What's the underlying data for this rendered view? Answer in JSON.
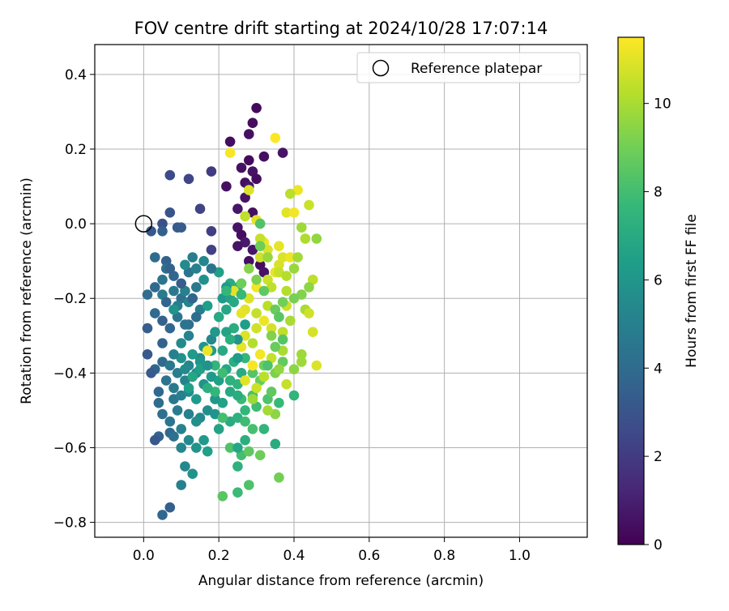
{
  "chart_data": {
    "type": "scatter",
    "title": "FOV centre drift starting at 2024/10/28 17:07:14",
    "xlabel": "Angular distance from reference (arcmin)",
    "ylabel": "Rotation from reference (arcmin)",
    "xlim": [
      -0.13,
      1.18
    ],
    "ylim": [
      -0.84,
      0.48
    ],
    "xticks": [
      0.0,
      0.2,
      0.4,
      0.6,
      0.8,
      1.0
    ],
    "xtick_labels": [
      "0.0",
      "0.2",
      "0.4",
      "0.6",
      "0.8",
      "1.0"
    ],
    "yticks": [
      0.4,
      0.2,
      0.0,
      -0.2,
      -0.4,
      -0.6,
      -0.8
    ],
    "ytick_labels": [
      "0.4",
      "0.2",
      "0.0",
      "−0.2",
      "−0.4",
      "−0.6",
      "−0.8"
    ],
    "grid": true,
    "legend": {
      "placement": "top-right",
      "entries": [
        "Reference platepar"
      ]
    },
    "reference_point": {
      "x": 0.0,
      "y": 0.0
    },
    "colorbar": {
      "label": "Hours from first FF file",
      "range": [
        0,
        11.5
      ],
      "ticks": [
        0,
        2,
        4,
        6,
        8,
        10
      ],
      "tick_labels": [
        "0",
        "2",
        "4",
        "6",
        "8",
        "10"
      ],
      "colormap": "viridis"
    },
    "colormap_stops": [
      "#440154",
      "#482878",
      "#3e4a89",
      "#31688e",
      "#26828e",
      "#1f9e89",
      "#35b779",
      "#6ece58",
      "#b5de2b",
      "#fde725"
    ],
    "point_color_scale": [
      0,
      11.5
    ],
    "points": [
      [
        0.3,
        0.31,
        0.3
      ],
      [
        0.29,
        0.27,
        0.4
      ],
      [
        0.23,
        0.22,
        0.4
      ],
      [
        0.28,
        0.24,
        0.5
      ],
      [
        0.37,
        0.19,
        0.6
      ],
      [
        0.32,
        0.18,
        0.5
      ],
      [
        0.28,
        0.17,
        0.3
      ],
      [
        0.26,
        0.15,
        0.5
      ],
      [
        0.29,
        0.14,
        0.6
      ],
      [
        0.3,
        0.12,
        0.4
      ],
      [
        0.27,
        0.11,
        0.5
      ],
      [
        0.28,
        0.1,
        0.7
      ],
      [
        0.22,
        0.1,
        0.5
      ],
      [
        0.27,
        0.07,
        0.6
      ],
      [
        0.25,
        0.04,
        0.7
      ],
      [
        0.29,
        0.03,
        0.5
      ],
      [
        0.25,
        -0.01,
        0.6
      ],
      [
        0.26,
        -0.03,
        0.4
      ],
      [
        0.27,
        -0.05,
        0.8
      ],
      [
        0.25,
        -0.06,
        0.6
      ],
      [
        0.29,
        -0.07,
        0.7
      ],
      [
        0.28,
        -0.1,
        0.5
      ],
      [
        0.31,
        -0.11,
        0.4
      ],
      [
        0.32,
        -0.13,
        0.6
      ],
      [
        0.18,
        0.14,
        2.0
      ],
      [
        0.12,
        0.12,
        2.4
      ],
      [
        0.07,
        0.13,
        2.6
      ],
      [
        0.15,
        0.04,
        2.3
      ],
      [
        0.07,
        0.03,
        3.0
      ],
      [
        0.05,
        0.0,
        2.8
      ],
      [
        0.09,
        -0.01,
        3.2
      ],
      [
        0.05,
        -0.02,
        3.5
      ],
      [
        0.02,
        -0.02,
        3.1
      ],
      [
        0.1,
        -0.01,
        3.3
      ],
      [
        0.18,
        -0.07,
        2.2
      ],
      [
        0.18,
        -0.02,
        2.1
      ],
      [
        0.03,
        -0.09,
        4.0
      ],
      [
        0.06,
        -0.1,
        3.6
      ],
      [
        0.06,
        -0.12,
        4.2
      ],
      [
        0.12,
        -0.13,
        4.5
      ],
      [
        0.08,
        -0.14,
        3.8
      ],
      [
        0.05,
        -0.15,
        4.4
      ],
      [
        0.03,
        -0.17,
        3.9
      ],
      [
        0.01,
        -0.19,
        4.1
      ],
      [
        0.05,
        -0.19,
        4.8
      ],
      [
        0.08,
        -0.18,
        4.6
      ],
      [
        0.1,
        -0.2,
        4.3
      ],
      [
        0.11,
        -0.18,
        5.0
      ],
      [
        0.14,
        -0.17,
        4.7
      ],
      [
        0.12,
        -0.21,
        5.2
      ],
      [
        0.09,
        -0.22,
        4.9
      ],
      [
        0.06,
        -0.21,
        3.7
      ],
      [
        0.03,
        -0.24,
        4.0
      ],
      [
        0.05,
        -0.26,
        3.5
      ],
      [
        0.07,
        -0.28,
        3.8
      ],
      [
        0.01,
        -0.28,
        3.4
      ],
      [
        0.09,
        -0.25,
        4.5
      ],
      [
        0.12,
        -0.27,
        4.2
      ],
      [
        0.15,
        -0.23,
        4.8
      ],
      [
        0.12,
        -0.3,
        5.1
      ],
      [
        0.1,
        -0.32,
        5.5
      ],
      [
        0.05,
        -0.32,
        3.6
      ],
      [
        0.01,
        -0.35,
        3.2
      ],
      [
        0.05,
        -0.37,
        4.0
      ],
      [
        0.03,
        -0.39,
        3.7
      ],
      [
        0.02,
        -0.4,
        3.3
      ],
      [
        0.06,
        -0.42,
        4.4
      ],
      [
        0.09,
        -0.4,
        4.9
      ],
      [
        0.12,
        -0.38,
        5.3
      ],
      [
        0.15,
        -0.36,
        5.7
      ],
      [
        0.16,
        -0.33,
        6.0
      ],
      [
        0.18,
        -0.31,
        5.4
      ],
      [
        0.19,
        -0.29,
        6.1
      ],
      [
        0.17,
        -0.22,
        6.4
      ],
      [
        0.21,
        -0.2,
        6.2
      ],
      [
        0.23,
        -0.2,
        6.6
      ],
      [
        0.16,
        -0.15,
        5.8
      ],
      [
        0.2,
        -0.13,
        6.5
      ],
      [
        0.23,
        -0.16,
        7.0
      ],
      [
        0.25,
        -0.17,
        7.3
      ],
      [
        0.22,
        -0.23,
        6.8
      ],
      [
        0.24,
        -0.28,
        7.1
      ],
      [
        0.22,
        -0.29,
        6.7
      ],
      [
        0.21,
        -0.34,
        6.9
      ],
      [
        0.18,
        -0.34,
        6.3
      ],
      [
        0.15,
        -0.37,
        6.0
      ],
      [
        0.14,
        -0.4,
        5.6
      ],
      [
        0.11,
        -0.42,
        5.2
      ],
      [
        0.08,
        -0.44,
        4.7
      ],
      [
        0.04,
        -0.45,
        3.9
      ],
      [
        0.04,
        -0.48,
        4.1
      ],
      [
        0.08,
        -0.47,
        4.6
      ],
      [
        0.1,
        -0.46,
        5.0
      ],
      [
        0.12,
        -0.45,
        5.4
      ],
      [
        0.16,
        -0.43,
        5.9
      ],
      [
        0.18,
        -0.41,
        6.2
      ],
      [
        0.2,
        -0.42,
        6.5
      ],
      [
        0.22,
        -0.39,
        6.8
      ],
      [
        0.24,
        -0.37,
        7.2
      ],
      [
        0.27,
        -0.36,
        7.6
      ],
      [
        0.26,
        -0.4,
        7.0
      ],
      [
        0.25,
        -0.43,
        7.4
      ],
      [
        0.23,
        -0.45,
        6.9
      ],
      [
        0.21,
        -0.48,
        6.6
      ],
      [
        0.19,
        -0.47,
        6.1
      ],
      [
        0.17,
        -0.5,
        5.7
      ],
      [
        0.15,
        -0.52,
        5.4
      ],
      [
        0.12,
        -0.51,
        5.0
      ],
      [
        0.09,
        -0.5,
        4.8
      ],
      [
        0.05,
        -0.51,
        4.2
      ],
      [
        0.07,
        -0.53,
        4.5
      ],
      [
        0.07,
        -0.56,
        4.0
      ],
      [
        0.04,
        -0.57,
        3.6
      ],
      [
        0.03,
        -0.58,
        3.1
      ],
      [
        0.1,
        -0.55,
        5.1
      ],
      [
        0.12,
        -0.58,
        5.5
      ],
      [
        0.1,
        -0.6,
        5.3
      ],
      [
        0.14,
        -0.6,
        5.9
      ],
      [
        0.16,
        -0.58,
        6.2
      ],
      [
        0.2,
        -0.55,
        6.6
      ],
      [
        0.23,
        -0.53,
        7.0
      ],
      [
        0.25,
        -0.52,
        7.3
      ],
      [
        0.27,
        -0.5,
        7.6
      ],
      [
        0.26,
        -0.47,
        7.8
      ],
      [
        0.29,
        -0.46,
        8.1
      ],
      [
        0.3,
        -0.49,
        7.9
      ],
      [
        0.33,
        -0.47,
        8.3
      ],
      [
        0.36,
        -0.48,
        7.7
      ],
      [
        0.34,
        -0.45,
        8.6
      ],
      [
        0.31,
        -0.42,
        8.8
      ],
      [
        0.29,
        -0.4,
        8.4
      ],
      [
        0.32,
        -0.38,
        9.0
      ],
      [
        0.35,
        -0.4,
        9.2
      ],
      [
        0.37,
        -0.37,
        8.7
      ],
      [
        0.4,
        -0.39,
        9.5
      ],
      [
        0.42,
        -0.35,
        9.8
      ],
      [
        0.4,
        -0.46,
        7.5
      ],
      [
        0.38,
        -0.43,
        10.5
      ],
      [
        0.26,
        -0.62,
        8.0
      ],
      [
        0.23,
        -0.6,
        8.3
      ],
      [
        0.28,
        -0.61,
        8.6
      ],
      [
        0.31,
        -0.62,
        8.9
      ],
      [
        0.27,
        -0.58,
        7.2
      ],
      [
        0.25,
        -0.6,
        6.8
      ],
      [
        0.32,
        -0.55,
        7.5
      ],
      [
        0.35,
        -0.59,
        7.0
      ],
      [
        0.36,
        -0.68,
        9.0
      ],
      [
        0.28,
        -0.7,
        8.2
      ],
      [
        0.25,
        -0.72,
        7.8
      ],
      [
        0.21,
        -0.73,
        8.5
      ],
      [
        0.25,
        -0.65,
        7.3
      ],
      [
        0.17,
        -0.61,
        6.5
      ],
      [
        0.13,
        -0.67,
        5.8
      ],
      [
        0.11,
        -0.65,
        5.4
      ],
      [
        0.1,
        -0.7,
        5.0
      ],
      [
        0.07,
        -0.76,
        3.5
      ],
      [
        0.05,
        -0.78,
        3.8
      ],
      [
        0.19,
        -0.51,
        6.0
      ],
      [
        0.14,
        -0.53,
        5.7
      ],
      [
        0.08,
        -0.57,
        4.3
      ],
      [
        0.32,
        -0.05,
        11.2
      ],
      [
        0.3,
        0.01,
        11.0
      ],
      [
        0.33,
        -0.07,
        10.9
      ],
      [
        0.31,
        -0.09,
        10.7
      ],
      [
        0.36,
        -0.11,
        10.8
      ],
      [
        0.35,
        -0.13,
        11.1
      ],
      [
        0.33,
        -0.15,
        10.6
      ],
      [
        0.3,
        -0.17,
        11.3
      ],
      [
        0.34,
        -0.17,
        10.4
      ],
      [
        0.38,
        -0.18,
        10.2
      ],
      [
        0.28,
        -0.2,
        10.9
      ],
      [
        0.27,
        -0.23,
        11.0
      ],
      [
        0.3,
        -0.24,
        10.5
      ],
      [
        0.33,
        -0.22,
        10.3
      ],
      [
        0.36,
        -0.25,
        10.1
      ],
      [
        0.38,
        -0.22,
        10.6
      ],
      [
        0.39,
        -0.26,
        10.0
      ],
      [
        0.37,
        -0.29,
        10.4
      ],
      [
        0.34,
        -0.28,
        10.8
      ],
      [
        0.32,
        -0.26,
        11.2
      ],
      [
        0.3,
        -0.28,
        10.7
      ],
      [
        0.27,
        -0.3,
        10.9
      ],
      [
        0.26,
        -0.33,
        11.1
      ],
      [
        0.29,
        -0.32,
        10.2
      ],
      [
        0.31,
        -0.35,
        11.3
      ],
      [
        0.34,
        -0.36,
        10.5
      ],
      [
        0.37,
        -0.34,
        10.0
      ],
      [
        0.29,
        -0.38,
        11.4
      ],
      [
        0.32,
        -0.41,
        10.3
      ],
      [
        0.3,
        -0.44,
        10.6
      ],
      [
        0.27,
        -0.42,
        11.0
      ],
      [
        0.29,
        -0.47,
        9.8
      ],
      [
        0.35,
        -0.51,
        9.5
      ],
      [
        0.33,
        -0.5,
        9.9
      ],
      [
        0.41,
        0.09,
        11.2
      ],
      [
        0.39,
        0.08,
        10.3
      ],
      [
        0.44,
        0.05,
        10.6
      ],
      [
        0.38,
        0.03,
        11.0
      ],
      [
        0.4,
        0.03,
        11.3
      ],
      [
        0.42,
        -0.01,
        9.8
      ],
      [
        0.43,
        -0.04,
        10.1
      ],
      [
        0.46,
        -0.04,
        9.6
      ],
      [
        0.36,
        -0.06,
        11.1
      ],
      [
        0.37,
        -0.09,
        10.9
      ],
      [
        0.39,
        -0.09,
        11.2
      ],
      [
        0.41,
        -0.09,
        9.9
      ],
      [
        0.36,
        -0.13,
        10.5
      ],
      [
        0.38,
        -0.14,
        10.2
      ],
      [
        0.4,
        -0.12,
        9.7
      ],
      [
        0.45,
        -0.15,
        10.4
      ],
      [
        0.44,
        -0.17,
        9.5
      ],
      [
        0.42,
        -0.19,
        9.3
      ],
      [
        0.4,
        -0.2,
        9.1
      ],
      [
        0.43,
        -0.23,
        10.0
      ],
      [
        0.44,
        -0.24,
        10.7
      ],
      [
        0.45,
        -0.29,
        10.8
      ],
      [
        0.46,
        -0.38,
        10.9
      ],
      [
        0.42,
        -0.37,
        9.8
      ],
      [
        0.37,
        -0.21,
        9.0
      ],
      [
        0.35,
        -0.23,
        8.8
      ],
      [
        0.32,
        -0.18,
        8.6
      ],
      [
        0.3,
        -0.15,
        9.2
      ],
      [
        0.28,
        -0.12,
        9.4
      ],
      [
        0.26,
        -0.16,
        8.9
      ],
      [
        0.31,
        0.0,
        8.3
      ],
      [
        0.31,
        -0.04,
        10.5
      ],
      [
        0.33,
        -0.09,
        9.7
      ],
      [
        0.31,
        -0.06,
        8.9
      ],
      [
        0.28,
        0.09,
        10.9
      ],
      [
        0.27,
        0.02,
        10.4
      ],
      [
        0.35,
        0.23,
        11.5
      ],
      [
        0.23,
        0.19,
        11.4
      ],
      [
        0.36,
        -0.25,
        8.5
      ],
      [
        0.34,
        -0.3,
        9.3
      ],
      [
        0.37,
        -0.31,
        8.4
      ],
      [
        0.35,
        -0.33,
        8.8
      ],
      [
        0.33,
        -0.38,
        8.2
      ],
      [
        0.36,
        -0.39,
        9.6
      ],
      [
        0.26,
        -0.24,
        11.1
      ],
      [
        0.24,
        -0.18,
        11.0
      ],
      [
        0.17,
        -0.34,
        11.2
      ],
      [
        0.22,
        -0.17,
        6.2
      ],
      [
        0.24,
        -0.21,
        6.9
      ],
      [
        0.26,
        -0.19,
        7.7
      ],
      [
        0.25,
        -0.46,
        7.1
      ],
      [
        0.27,
        -0.53,
        7.9
      ],
      [
        0.29,
        -0.55,
        8.1
      ],
      [
        0.21,
        -0.52,
        8.0
      ],
      [
        0.19,
        -0.45,
        7.6
      ],
      [
        0.17,
        -0.44,
        7.2
      ],
      [
        0.23,
        -0.42,
        7.3
      ],
      [
        0.21,
        -0.4,
        7.9
      ],
      [
        0.19,
        -0.38,
        7.5
      ],
      [
        0.14,
        -0.47,
        6.2
      ],
      [
        0.12,
        -0.44,
        6.5
      ],
      [
        0.13,
        -0.41,
        6.8
      ],
      [
        0.1,
        -0.36,
        5.8
      ],
      [
        0.13,
        -0.35,
        6.2
      ],
      [
        0.15,
        -0.39,
        6.5
      ],
      [
        0.17,
        -0.38,
        5.9
      ],
      [
        0.11,
        -0.39,
        5.5
      ],
      [
        0.08,
        -0.35,
        5.0
      ],
      [
        0.07,
        -0.38,
        4.6
      ],
      [
        0.11,
        -0.27,
        4.4
      ],
      [
        0.14,
        -0.25,
        4.1
      ],
      [
        0.13,
        -0.2,
        3.7
      ],
      [
        0.08,
        -0.23,
        5.9
      ],
      [
        0.1,
        -0.16,
        3.4
      ],
      [
        0.07,
        -0.12,
        3.6
      ],
      [
        0.11,
        -0.11,
        5.5
      ],
      [
        0.13,
        -0.09,
        4.9
      ],
      [
        0.16,
        -0.1,
        5.3
      ],
      [
        0.14,
        -0.12,
        5.0
      ],
      [
        0.18,
        -0.12,
        4.4
      ],
      [
        0.22,
        -0.18,
        7.6
      ],
      [
        0.27,
        -0.27,
        6.4
      ],
      [
        0.25,
        -0.31,
        6.0
      ],
      [
        0.2,
        -0.25,
        6.9
      ],
      [
        0.23,
        -0.31,
        7.2
      ],
      [
        0.25,
        -0.36,
        6.3
      ]
    ]
  }
}
